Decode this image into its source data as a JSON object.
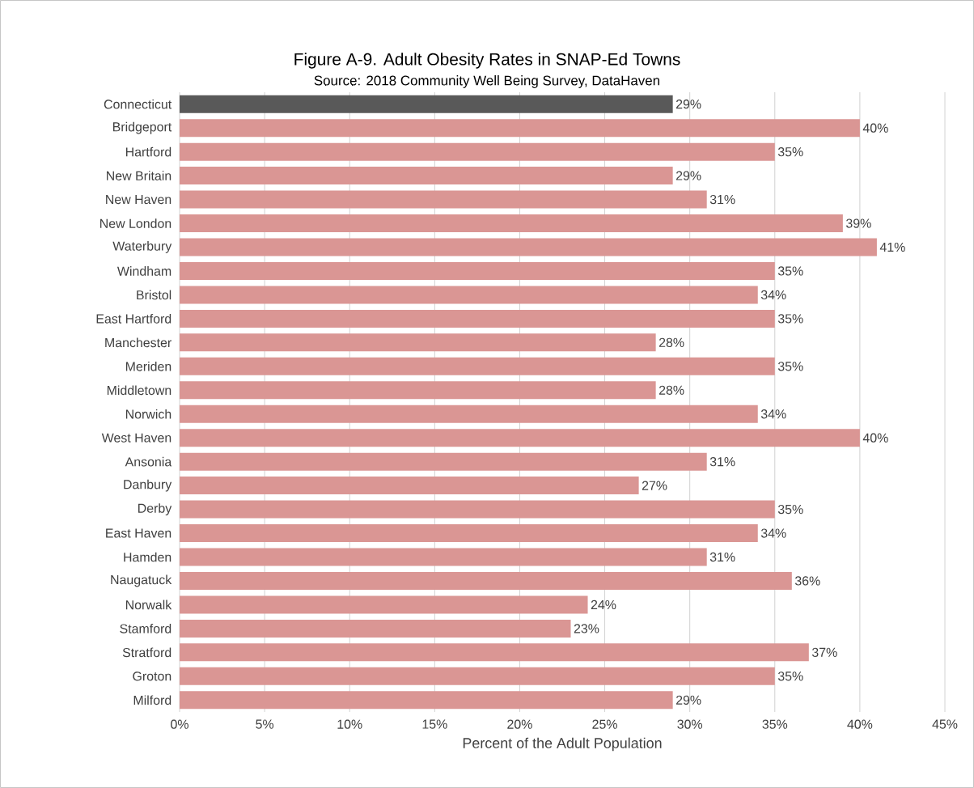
{
  "chart_data": {
    "type": "bar",
    "orientation": "horizontal",
    "title": "Figure A-9. Adult Obesity Rates in SNAP-Ed Towns",
    "subtitle": "Source: 2018 Community Well Being Survey, DataHaven",
    "xlabel": "Percent of the Adult Population",
    "categories": [
      "Connecticut",
      "Bridgeport",
      "Hartford",
      "New Britain",
      "New Haven",
      "New London",
      "Waterbury",
      "Windham",
      "Bristol",
      "East Hartford",
      "Manchester",
      "Meriden",
      "Middletown",
      "Norwich",
      "West Haven",
      "Ansonia",
      "Danbury",
      "Derby",
      "East Haven",
      "Hamden",
      "Naugatuck",
      "Norwalk",
      "Stamford",
      "Stratford",
      "Groton",
      "Milford"
    ],
    "values": [
      29,
      40,
      35,
      29,
      31,
      39,
      41,
      35,
      34,
      35,
      28,
      35,
      28,
      34,
      40,
      31,
      27,
      35,
      34,
      31,
      36,
      24,
      23,
      37,
      35,
      29
    ],
    "value_labels": [
      "29%",
      "40%",
      "35%",
      "29%",
      "31%",
      "39%",
      "41%",
      "35%",
      "34%",
      "35%",
      "28%",
      "35%",
      "28%",
      "34%",
      "40%",
      "31%",
      "27%",
      "35%",
      "34%",
      "31%",
      "36%",
      "24%",
      "23%",
      "37%",
      "35%",
      "29%"
    ],
    "colors": [
      "#595959",
      "#da9694",
      "#da9694",
      "#da9694",
      "#da9694",
      "#da9694",
      "#da9694",
      "#da9694",
      "#da9694",
      "#da9694",
      "#da9694",
      "#da9694",
      "#da9694",
      "#da9694",
      "#da9694",
      "#da9694",
      "#da9694",
      "#da9694",
      "#da9694",
      "#da9694",
      "#da9694",
      "#da9694",
      "#da9694",
      "#da9694",
      "#da9694",
      "#da9694"
    ],
    "xlim": [
      0,
      45
    ],
    "xticks": [
      {
        "value": 0,
        "label": "0%"
      },
      {
        "value": 5,
        "label": "5%"
      },
      {
        "value": 10,
        "label": "10%"
      },
      {
        "value": 15,
        "label": "15%"
      },
      {
        "value": 20,
        "label": "20%"
      },
      {
        "value": 25,
        "label": "25%"
      },
      {
        "value": 30,
        "label": "30%"
      },
      {
        "value": 35,
        "label": "35%"
      },
      {
        "value": 40,
        "label": "40%"
      },
      {
        "value": 45,
        "label": "45%"
      }
    ],
    "grid": "x"
  }
}
